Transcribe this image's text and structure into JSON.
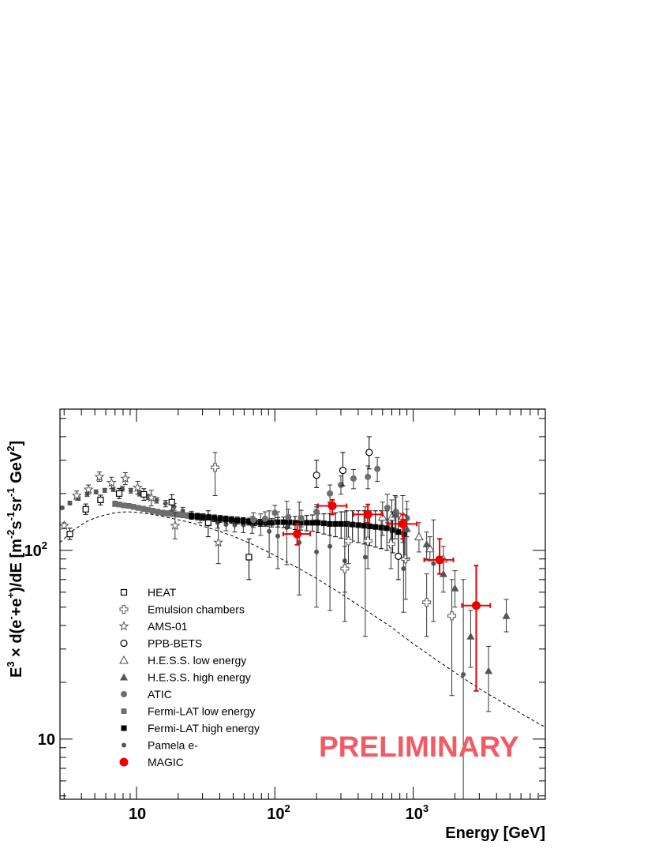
{
  "chart_data": {
    "type": "scatter",
    "xlabel": "Energy [GeV]",
    "ylabel_parts": [
      "E",
      "3",
      " × d(e",
      "-",
      "+e",
      "+",
      ")/dE [m",
      "-2",
      "s",
      "-1",
      "sr",
      "-1",
      " GeV",
      "2",
      "]"
    ],
    "xscale": "log",
    "yscale": "log",
    "xlim": [
      2.8,
      9000
    ],
    "ylim": [
      4.8,
      560
    ],
    "x_ticks": [
      {
        "base": "10",
        "exp": ""
      },
      {
        "base": "10",
        "exp": "2"
      },
      {
        "base": "10",
        "exp": "3"
      }
    ],
    "y_ticks": [
      {
        "base": "10",
        "exp": ""
      },
      {
        "base": "10",
        "exp": "2"
      }
    ],
    "legend_position": "lower-left",
    "watermark": "PRELIMINARY",
    "colors": {
      "gray": "#6e6e6e",
      "dark": "#555555",
      "black": "#000000",
      "red": "#ee0000",
      "watermark": "#f25a64"
    },
    "series": [
      {
        "name": "HEAT",
        "marker": "open-square",
        "color": "#000000",
        "points": [
          [
            3.3,
            122,
            114,
            131
          ],
          [
            4.3,
            165,
            155,
            176
          ],
          [
            5.5,
            185,
            174,
            196
          ],
          [
            7.5,
            200,
            188,
            213
          ],
          [
            11.3,
            198,
            184,
            212
          ],
          [
            18,
            180,
            163,
            197
          ],
          [
            33,
            140,
            118,
            162
          ],
          [
            65,
            92,
            70,
            115
          ]
        ]
      },
      {
        "name": "Emulsion chambers",
        "marker": "open-cross",
        "color": "#555555",
        "points": [
          [
            37,
            275,
            195,
            330
          ],
          [
            320,
            80,
            60,
            105
          ],
          [
            340,
            112,
            85,
            140
          ],
          [
            470,
            112,
            80,
            150
          ],
          [
            690,
            108,
            80,
            145
          ],
          [
            880,
            90,
            55,
            125
          ],
          [
            1250,
            53,
            35,
            75
          ],
          [
            1900,
            45,
            17,
            70
          ]
        ]
      },
      {
        "name": "AMS-01",
        "marker": "open-star",
        "color": "#555555",
        "points": [
          [
            3.0,
            135,
            130,
            140
          ],
          [
            3.7,
            195,
            185,
            206
          ],
          [
            4.5,
            210,
            199,
            222
          ],
          [
            5.4,
            245,
            232,
            260
          ],
          [
            6.6,
            228,
            212,
            244
          ],
          [
            8.3,
            240,
            223,
            258
          ],
          [
            10.2,
            215,
            198,
            232
          ],
          [
            12.8,
            190,
            172,
            208
          ],
          [
            19,
            135,
            115,
            158
          ],
          [
            39,
            110,
            85,
            140
          ]
        ]
      },
      {
        "name": "PPB-BETS",
        "marker": "open-circle",
        "color": "#000000",
        "points": [
          [
            200,
            250,
            215,
            300
          ],
          [
            310,
            265,
            220,
            330
          ],
          [
            480,
            330,
            270,
            400
          ],
          [
            780,
            93,
            70,
            125
          ]
        ]
      },
      {
        "name": "H.E.S.S. low energy",
        "marker": "open-triangle",
        "color": "#555555",
        "points": [
          [
            600,
            150,
            120,
            180
          ],
          [
            700,
            150,
            115,
            185
          ],
          [
            840,
            152,
            110,
            195
          ],
          [
            1100,
            118,
            98,
            140
          ],
          [
            1320,
            102,
            88,
            118
          ],
          [
            1650,
            90,
            75,
            105
          ]
        ]
      },
      {
        "name": "H.E.S.S. high energy",
        "marker": "filled-triangle",
        "color": "#555555",
        "points": [
          [
            740,
            155,
            115,
            195
          ],
          [
            900,
            130,
            90,
            165
          ],
          [
            1250,
            108,
            90,
            125
          ],
          [
            1650,
            75,
            60,
            90
          ],
          [
            2000,
            63,
            50,
            78
          ],
          [
            2600,
            35,
            24,
            48
          ],
          [
            3500,
            23,
            14,
            31
          ],
          [
            4700,
            45,
            37,
            55
          ]
        ]
      },
      {
        "name": "ATIC",
        "marker": "filled-circle",
        "color": "#6e6e6e",
        "points": [
          [
            70,
            145,
            132,
            158
          ],
          [
            85,
            147,
            134,
            160
          ],
          [
            100,
            158,
            143,
            173
          ],
          [
            125,
            150,
            135,
            165
          ],
          [
            155,
            148,
            133,
            163
          ],
          [
            200,
            160,
            145,
            175
          ],
          [
            250,
            200,
            178,
            222
          ],
          [
            300,
            222,
            198,
            248
          ],
          [
            370,
            240,
            212,
            268
          ],
          [
            470,
            245,
            212,
            280
          ],
          [
            550,
            270,
            232,
            310
          ],
          [
            650,
            168,
            140,
            198
          ],
          [
            750,
            160,
            130,
            192
          ],
          [
            900,
            148,
            118,
            182
          ]
        ]
      },
      {
        "name": "Fermi-LAT low energy",
        "marker": "filled-square",
        "color": "#6e6e6e",
        "points": [
          [
            7.0,
            176,
            171,
            182
          ],
          [
            7.5,
            175,
            170,
            180
          ],
          [
            8.1,
            173,
            168,
            178
          ],
          [
            8.8,
            172,
            167,
            177
          ],
          [
            9.5,
            170,
            165,
            175
          ],
          [
            10.3,
            168,
            163,
            173
          ],
          [
            11.2,
            166,
            161,
            171
          ],
          [
            12.1,
            164,
            159,
            169
          ],
          [
            13.1,
            162,
            157,
            167
          ],
          [
            14.2,
            160,
            155,
            165
          ],
          [
            15.5,
            158,
            153,
            163
          ],
          [
            16.8,
            157,
            152,
            162
          ],
          [
            18.2,
            156,
            151,
            161
          ],
          [
            19.8,
            155,
            150,
            160
          ],
          [
            21.5,
            154,
            149,
            159
          ],
          [
            23.3,
            153,
            148,
            158
          ]
        ]
      },
      {
        "name": "Fermi-LAT high energy",
        "marker": "filled-square",
        "color": "#000000",
        "points": [
          [
            25.0,
            152,
            146,
            158
          ],
          [
            27.5,
            151,
            145,
            157
          ],
          [
            30.3,
            150,
            144,
            156
          ],
          [
            33.3,
            149,
            143,
            155
          ],
          [
            36.6,
            148,
            142,
            154
          ],
          [
            40.3,
            147,
            141,
            153
          ],
          [
            44.3,
            146,
            140,
            152
          ],
          [
            48.7,
            145,
            139,
            151
          ],
          [
            53.6,
            144,
            138,
            150
          ],
          [
            59.0,
            143,
            137,
            149
          ],
          [
            64.9,
            142,
            136,
            148
          ],
          [
            71.4,
            141,
            135,
            147
          ],
          [
            78.5,
            140,
            134,
            146
          ],
          [
            86.4,
            140,
            134,
            146
          ],
          [
            95,
            140,
            133,
            147
          ],
          [
            105,
            141,
            133,
            149
          ],
          [
            116,
            141,
            132,
            150
          ],
          [
            127,
            141,
            131,
            151
          ],
          [
            140,
            140,
            129,
            151
          ],
          [
            154,
            140,
            128,
            152
          ],
          [
            170,
            140,
            127,
            153
          ],
          [
            187,
            140,
            126,
            154
          ],
          [
            205,
            140,
            124,
            156
          ],
          [
            226,
            139,
            122,
            156
          ],
          [
            249,
            138,
            120,
            156
          ],
          [
            274,
            138,
            118,
            158
          ],
          [
            301,
            138,
            116,
            160
          ],
          [
            331,
            138,
            114,
            162
          ],
          [
            364,
            137,
            112,
            162
          ],
          [
            401,
            136,
            110,
            162
          ],
          [
            441,
            135,
            108,
            162
          ],
          [
            485,
            134,
            106,
            162
          ],
          [
            533,
            133,
            104,
            162
          ],
          [
            587,
            132,
            102,
            162
          ],
          [
            645,
            131,
            100,
            162
          ],
          [
            710,
            128,
            97,
            160
          ],
          [
            781,
            125,
            93,
            157
          ],
          [
            860,
            122,
            90,
            154
          ]
        ]
      },
      {
        "name": "Pamela e-",
        "marker": "filled-dot",
        "color": "#555555",
        "points": [
          [
            2.9,
            168,
            165,
            171
          ],
          [
            3.3,
            178,
            174,
            182
          ],
          [
            3.8,
            188,
            184,
            192
          ],
          [
            4.4,
            198,
            193,
            203
          ],
          [
            5.1,
            204,
            199,
            209
          ],
          [
            5.9,
            208,
            203,
            213
          ],
          [
            6.8,
            210,
            205,
            215
          ],
          [
            7.9,
            212,
            206,
            218
          ],
          [
            9.1,
            207,
            201,
            213
          ],
          [
            10.5,
            200,
            194,
            206
          ],
          [
            12.1,
            192,
            186,
            198
          ],
          [
            14.0,
            184,
            178,
            190
          ],
          [
            16.2,
            177,
            170,
            184
          ],
          [
            18.7,
            170,
            163,
            177
          ],
          [
            21.6,
            162,
            155,
            169
          ],
          [
            25.0,
            154,
            147,
            161
          ],
          [
            28.8,
            148,
            140,
            156
          ],
          [
            33.3,
            143,
            135,
            151
          ],
          [
            38.5,
            140,
            131,
            149
          ],
          [
            44.4,
            137,
            127,
            147
          ],
          [
            51.3,
            136,
            125,
            147
          ],
          [
            59.2,
            136,
            124,
            148
          ],
          [
            68.4,
            137,
            123,
            151
          ],
          [
            79,
            138,
            120,
            156
          ],
          [
            91,
            126,
            92,
            162
          ],
          [
            105,
            119,
            80,
            160
          ],
          [
            122,
            132,
            84,
            182
          ],
          [
            150,
            110,
            58,
            180
          ],
          [
            200,
            98,
            50,
            170
          ],
          [
            250,
            105,
            48,
            180
          ],
          [
            320,
            88,
            42,
            160
          ],
          [
            450,
            92,
            35,
            170
          ],
          [
            850,
            80,
            47,
            125
          ],
          [
            1400,
            85,
            42,
            145
          ],
          [
            2300,
            22,
            4.8,
            70
          ]
        ]
      },
      {
        "name": "MAGIC",
        "marker": "filled-circle-red",
        "color": "#ee0000",
        "points": [
          [
            145,
            122,
            107,
            138,
            115,
            180
          ],
          [
            260,
            172,
            155,
            185,
            205,
            330
          ],
          [
            470,
            155,
            140,
            175,
            370,
            600
          ],
          [
            840,
            138,
            115,
            155,
            660,
            1060
          ],
          [
            1550,
            89,
            75,
            115,
            1200,
            1950
          ],
          [
            2850,
            51,
            18,
            83,
            2250,
            3600
          ]
        ]
      }
    ],
    "curve": {
      "style": "dashed",
      "points": [
        [
          2.8,
          110
        ],
        [
          3.5,
          128
        ],
        [
          4.5,
          144
        ],
        [
          5.5,
          152
        ],
        [
          7,
          158
        ],
        [
          8.5,
          160
        ],
        [
          10,
          159
        ],
        [
          13,
          155
        ],
        [
          17,
          149
        ],
        [
          25,
          140
        ],
        [
          35,
          130
        ],
        [
          50,
          119
        ],
        [
          70,
          107
        ],
        [
          100,
          94
        ],
        [
          150,
          80
        ],
        [
          200,
          71
        ],
        [
          300,
          59
        ],
        [
          500,
          46
        ],
        [
          700,
          39
        ],
        [
          1000,
          32
        ],
        [
          1500,
          26
        ],
        [
          2000,
          22.5
        ],
        [
          3000,
          18.5
        ],
        [
          5000,
          14.8
        ],
        [
          8000,
          12.1
        ],
        [
          9000,
          11.6
        ]
      ]
    }
  }
}
